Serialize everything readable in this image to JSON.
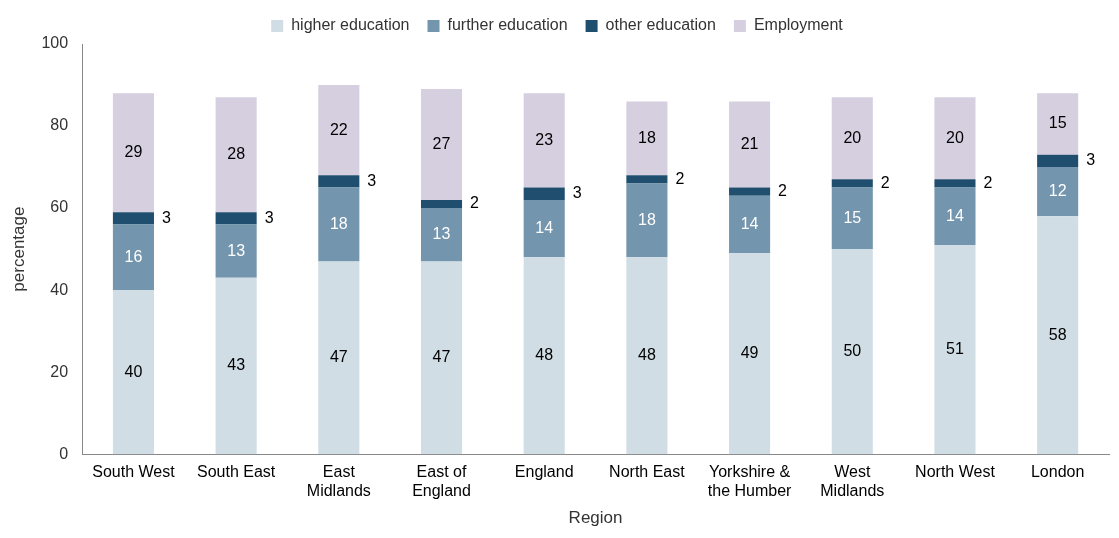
{
  "chart_data": {
    "type": "bar",
    "stacked": true,
    "xlabel": "Region",
    "ylabel": "percentage",
    "categories": [
      "South West",
      "South East",
      "East Midlands",
      "East of England",
      "England",
      "North East",
      "Yorkshire & the Humber",
      "West Midlands",
      "North West",
      "London"
    ],
    "series": [
      {
        "name": "higher education",
        "color": "#d0dde4",
        "values": [
          40,
          43,
          47,
          47,
          48,
          48,
          49,
          50,
          51,
          58
        ]
      },
      {
        "name": "further education",
        "color": "#7395ad",
        "values": [
          16,
          13,
          18,
          13,
          14,
          18,
          14,
          15,
          14,
          12
        ]
      },
      {
        "name": "other education",
        "color": "#1f4e6e",
        "values": [
          3,
          3,
          3,
          2,
          3,
          2,
          2,
          2,
          2,
          3
        ]
      },
      {
        "name": "Employment",
        "color": "#d6cfe0",
        "values": [
          29,
          28,
          22,
          27,
          23,
          18,
          21,
          20,
          20,
          15
        ]
      }
    ],
    "ylim": [
      0,
      100
    ],
    "yticks": [
      0,
      20,
      40,
      60,
      80,
      100
    ],
    "grid": false,
    "legend": "top",
    "data_labels": true
  }
}
